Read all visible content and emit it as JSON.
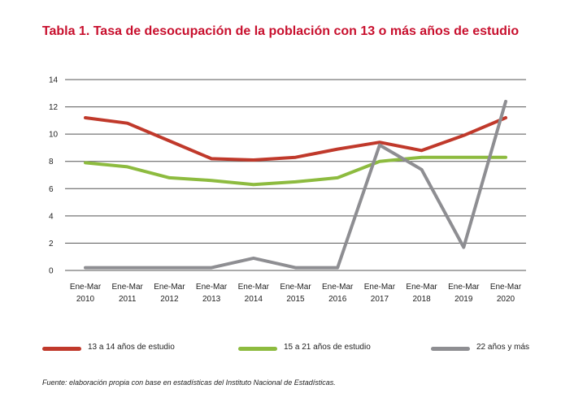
{
  "title": "Tabla 1. Tasa de desocupación de la población con 13 o más años de estudio",
  "source": "Fuente: elaboración propia con base en estadísticas del Instituto Nacional de Estadísticas.",
  "chart_data": {
    "type": "line",
    "categories": [
      [
        "Ene-Mar",
        "2010"
      ],
      [
        "Ene-Mar",
        "2011"
      ],
      [
        "Ene-Mar",
        "2012"
      ],
      [
        "Ene-Mar",
        "2013"
      ],
      [
        "Ene-Mar",
        "2014"
      ],
      [
        "Ene-Mar",
        "2015"
      ],
      [
        "Ene-Mar",
        "2016"
      ],
      [
        "Ene-Mar",
        "2017"
      ],
      [
        "Ene-Mar",
        "2018"
      ],
      [
        "Ene-Mar",
        "2019"
      ],
      [
        "Ene-Mar",
        "2020"
      ]
    ],
    "ylim": [
      0,
      14
    ],
    "yticks": [
      "0",
      "2",
      "4",
      "6",
      "8",
      "10",
      "12",
      "14"
    ],
    "grid": true,
    "legend_position": "bottom",
    "series": [
      {
        "name": "13 a 14 años de estudio",
        "color": "#c0392b",
        "values": [
          11.2,
          10.8,
          9.5,
          8.2,
          8.1,
          8.3,
          8.9,
          9.4,
          8.8,
          9.9,
          11.2
        ]
      },
      {
        "name": "15 a 21 años de estudio",
        "color": "#8dbb3f",
        "values": [
          7.9,
          7.6,
          6.8,
          6.6,
          6.3,
          6.5,
          6.8,
          8.0,
          8.3,
          8.3,
          8.3
        ]
      },
      {
        "name": "22 años y más",
        "color": "#8e8e92",
        "values": [
          0.2,
          0.2,
          0.2,
          0.2,
          0.9,
          0.2,
          0.2,
          9.2,
          7.4,
          1.7,
          12.4
        ]
      }
    ]
  }
}
